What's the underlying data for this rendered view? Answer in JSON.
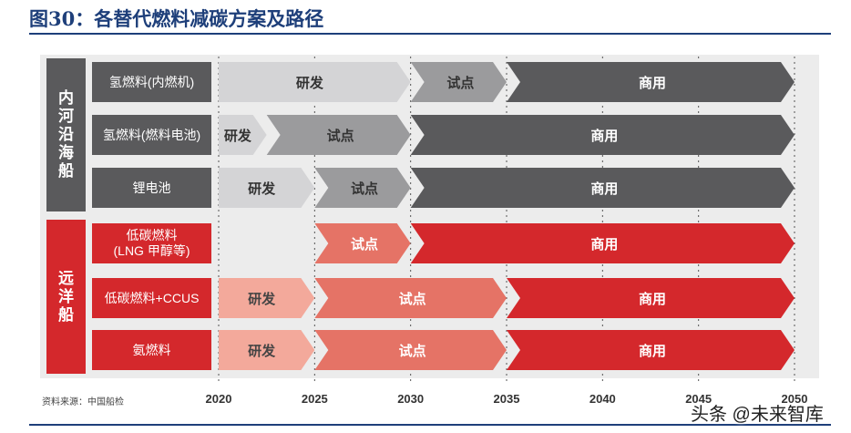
{
  "title": "图30：各替代燃料减碳方案及路径",
  "source": "资料来源：中国船检",
  "watermark": "头条 @未来智库",
  "colors": {
    "gray_dark": "#5a5a5c",
    "gray_mid": "#9b9b9d",
    "gray_light": "#d4d4d6",
    "red_dark": "#d4282c",
    "red_mid": "#e57366",
    "red_light": "#f3a99b",
    "label_gray": "#5a5a5c",
    "label_red": "#d4282c"
  },
  "years": [
    "2020",
    "2025",
    "2030",
    "2035",
    "2040",
    "2045",
    "2050"
  ],
  "groups": [
    {
      "name": "内河沿海船",
      "color": "gray_dark",
      "rows": [
        {
          "label": "氢燃料(内燃机)",
          "phases": [
            {
              "name": "研发",
              "start": 2020,
              "end": 2030,
              "color": "gray_light"
            },
            {
              "name": "试点",
              "start": 2030,
              "end": 2035,
              "color": "gray_mid"
            },
            {
              "name": "商用",
              "start": 2035,
              "end": 2050,
              "color": "gray_dark"
            }
          ]
        },
        {
          "label": "氢燃料(燃料电池)",
          "phases": [
            {
              "name": "研发",
              "start": 2020,
              "end": 2022.5,
              "color": "gray_light"
            },
            {
              "name": "试点",
              "start": 2022.5,
              "end": 2030,
              "color": "gray_mid"
            },
            {
              "name": "商用",
              "start": 2030,
              "end": 2050,
              "color": "gray_dark"
            }
          ]
        },
        {
          "label": "锂电池",
          "phases": [
            {
              "name": "研发",
              "start": 2020,
              "end": 2025,
              "color": "gray_light"
            },
            {
              "name": "试点",
              "start": 2025,
              "end": 2030,
              "color": "gray_mid"
            },
            {
              "name": "商用",
              "start": 2030,
              "end": 2050,
              "color": "gray_dark"
            }
          ]
        }
      ]
    },
    {
      "name": "远洋船",
      "color": "red_dark",
      "rows": [
        {
          "label": "低碳燃料\n(LNG 甲醇等)",
          "phases": [
            {
              "name": "试点",
              "start": 2025,
              "end": 2030,
              "color": "red_mid"
            },
            {
              "name": "商用",
              "start": 2030,
              "end": 2050,
              "color": "red_dark"
            }
          ]
        },
        {
          "label": "低碳燃料+CCUS",
          "phases": [
            {
              "name": "研发",
              "start": 2020,
              "end": 2025,
              "color": "red_light"
            },
            {
              "name": "试点",
              "start": 2025,
              "end": 2035,
              "color": "red_mid"
            },
            {
              "name": "商用",
              "start": 2035,
              "end": 2050,
              "color": "red_dark"
            }
          ]
        },
        {
          "label": "氨燃料",
          "phases": [
            {
              "name": "研发",
              "start": 2020,
              "end": 2025,
              "color": "red_light"
            },
            {
              "name": "试点",
              "start": 2025,
              "end": 2035,
              "color": "red_mid"
            },
            {
              "name": "商用",
              "start": 2035,
              "end": 2050,
              "color": "red_dark"
            }
          ]
        }
      ]
    }
  ]
}
